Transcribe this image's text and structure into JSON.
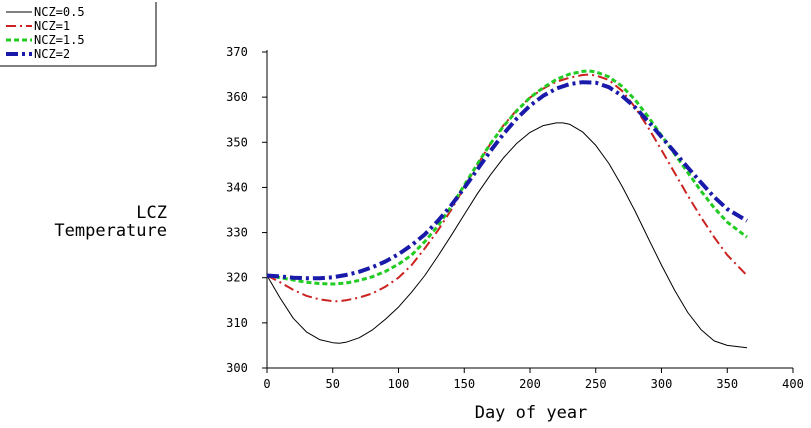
{
  "chart_data": {
    "type": "line",
    "title": "",
    "xlabel": "Day of year",
    "ylabel": [
      "LCZ",
      "Temperature"
    ],
    "xlim": [
      0,
      400
    ],
    "ylim": [
      300,
      370
    ],
    "xticks": [
      "0",
      "50",
      "100",
      "150",
      "200",
      "250",
      "300",
      "350",
      "400"
    ],
    "yticks": [
      "300",
      "310",
      "320",
      "330",
      "340",
      "350",
      "360",
      "370"
    ],
    "grid": false,
    "legend_position": "top-left",
    "series": [
      {
        "name": "NCZ=0.5",
        "color": "#000000",
        "style": "solid",
        "x": [
          0,
          10,
          20,
          30,
          40,
          50,
          55,
          60,
          70,
          80,
          90,
          100,
          110,
          120,
          130,
          140,
          150,
          160,
          170,
          180,
          190,
          200,
          210,
          220,
          225,
          230,
          240,
          250,
          260,
          270,
          280,
          290,
          300,
          310,
          320,
          330,
          340,
          350,
          365
        ],
        "y": [
          320.5,
          315.5,
          311,
          308,
          306.3,
          305.6,
          305.5,
          305.7,
          306.7,
          308.4,
          310.8,
          313.5,
          316.8,
          320.5,
          324.8,
          329.3,
          334,
          338.6,
          342.8,
          346.6,
          349.8,
          352.2,
          353.7,
          354.3,
          354.3,
          354,
          352.3,
          349.3,
          345.3,
          340.3,
          334.7,
          328.7,
          322.8,
          317.2,
          312.3,
          308.5,
          306,
          305,
          304.5
        ]
      },
      {
        "name": "NCZ=1",
        "color": "#cc2222",
        "style": "dashdot",
        "x": [
          0,
          10,
          20,
          30,
          40,
          50,
          55,
          60,
          70,
          80,
          90,
          100,
          110,
          120,
          130,
          140,
          150,
          160,
          170,
          180,
          190,
          200,
          210,
          220,
          230,
          240,
          245,
          250,
          260,
          270,
          280,
          290,
          300,
          310,
          320,
          330,
          340,
          350,
          365
        ],
        "y": [
          320.5,
          319,
          317.3,
          316,
          315.2,
          314.8,
          314.8,
          315,
          315.6,
          316.5,
          318,
          320,
          322.8,
          326.5,
          330.5,
          335,
          340,
          345,
          349.7,
          353.8,
          357.2,
          359.9,
          361.9,
          363.4,
          364.3,
          364.9,
          365,
          364.8,
          363.8,
          361.4,
          357.7,
          353.2,
          348.3,
          343.2,
          338.2,
          333.4,
          329,
          325,
          320.5
        ]
      },
      {
        "name": "NCZ=1.5",
        "color": "#22cc22",
        "style": "dotted",
        "x": [
          0,
          10,
          20,
          30,
          40,
          50,
          60,
          70,
          80,
          90,
          100,
          110,
          120,
          130,
          140,
          150,
          160,
          170,
          180,
          190,
          200,
          210,
          220,
          230,
          240,
          245,
          250,
          260,
          270,
          280,
          290,
          300,
          310,
          320,
          330,
          340,
          350,
          365
        ],
        "y": [
          320.5,
          320,
          319.5,
          319,
          318.7,
          318.6,
          318.8,
          319.4,
          320.2,
          321.4,
          323,
          325,
          328,
          331.5,
          335.7,
          340.5,
          345.2,
          349.7,
          353.6,
          357,
          359.9,
          362.1,
          363.9,
          365.1,
          365.7,
          365.8,
          365.6,
          364.5,
          362.4,
          359.4,
          355.6,
          351.5,
          347.4,
          343.3,
          339.2,
          335.5,
          332.3,
          329
        ]
      },
      {
        "name": "NCZ=2",
        "color": "#1a1aaa",
        "style": "dashdot-thick",
        "x": [
          0,
          10,
          20,
          30,
          40,
          50,
          60,
          70,
          80,
          90,
          100,
          110,
          120,
          130,
          140,
          150,
          160,
          170,
          180,
          190,
          200,
          210,
          220,
          230,
          240,
          250,
          260,
          270,
          280,
          290,
          300,
          310,
          320,
          330,
          340,
          350,
          365
        ],
        "y": [
          320.5,
          320.3,
          320,
          319.9,
          319.9,
          320.1,
          320.6,
          321.3,
          322.3,
          323.6,
          325.2,
          327.2,
          329.6,
          332.6,
          336,
          339.9,
          344,
          348.1,
          351.9,
          355.3,
          358.1,
          360.3,
          361.9,
          362.9,
          363.3,
          363.2,
          362.2,
          360.3,
          357.7,
          354.6,
          351.2,
          347.8,
          344.4,
          341.1,
          337.9,
          335.2,
          332.6
        ]
      }
    ]
  }
}
